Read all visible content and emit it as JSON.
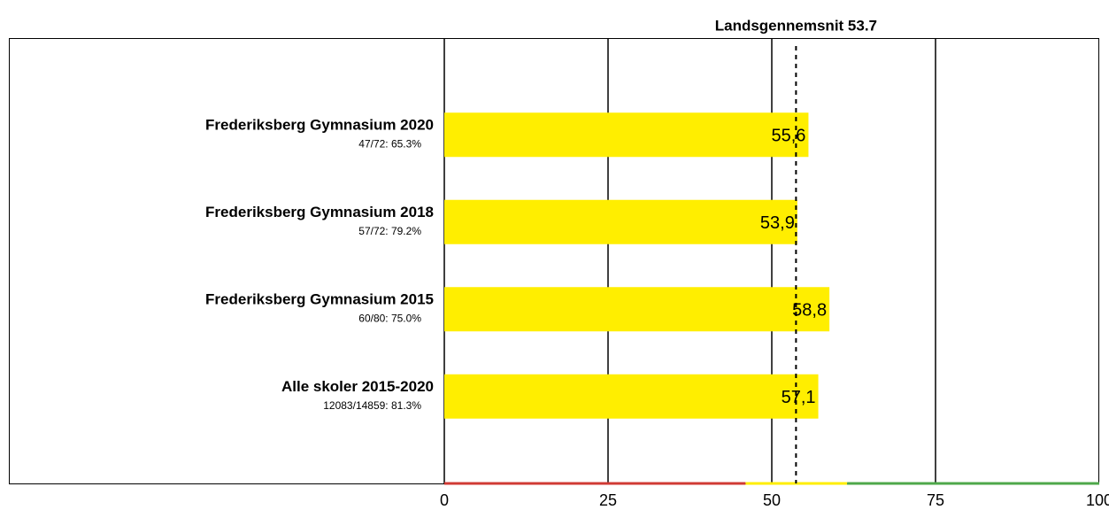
{
  "chart_data": {
    "type": "bar",
    "orientation": "horizontal",
    "categories": [
      "Frederiksberg Gymnasium 2020",
      "Frederiksberg Gymnasium 2018",
      "Frederiksberg Gymnasium 2015",
      "Alle skoler 2015-2020"
    ],
    "sublabels": [
      "47/72: 65.3%",
      "57/72: 79.2%",
      "60/80: 75.0%",
      "12083/14859: 81.3%"
    ],
    "values": [
      55.6,
      53.9,
      58.8,
      57.1
    ],
    "value_labels": [
      "55,6",
      "53,9",
      "58,8",
      "57,1"
    ],
    "color": "#ffee00",
    "xlim": [
      0,
      100
    ],
    "xticks": [
      0,
      25,
      50,
      75,
      100
    ],
    "grid": true,
    "reference_line": {
      "label": "Landsgennemsnit 53.7",
      "value": 53.7
    },
    "zones": [
      {
        "from": 0,
        "to": 46,
        "color": "#d03a34"
      },
      {
        "from": 46,
        "to": 61.5,
        "color": "#ffee00"
      },
      {
        "from": 61.5,
        "to": 100,
        "color": "#4ea84a"
      }
    ]
  }
}
